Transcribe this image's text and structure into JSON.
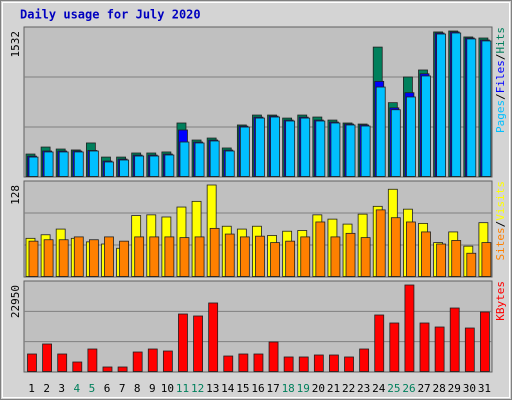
{
  "title": "Daily usage for July 2020",
  "legend_separator": "/",
  "categories": [
    "1",
    "2",
    "3",
    "4",
    "5",
    "6",
    "7",
    "8",
    "9",
    "10",
    "11",
    "12",
    "13",
    "14",
    "15",
    "16",
    "17",
    "18",
    "19",
    "20",
    "21",
    "22",
    "23",
    "24",
    "25",
    "26",
    "27",
    "28",
    "29",
    "30",
    "31"
  ],
  "highlight": [
    3,
    4,
    10,
    11,
    17,
    18,
    24,
    25
  ],
  "highlight_color": "#00805c",
  "chart_data": [
    {
      "type": "bar",
      "ylim": [
        0,
        1532
      ],
      "yticks": [
        1532
      ],
      "series": [
        {
          "name": "Hits",
          "color": "#00805c",
          "values": [
            232,
            306,
            285,
            275,
            349,
            200,
            200,
            243,
            243,
            254,
            560,
            380,
            401,
            296,
            539,
            644,
            644,
            612,
            644,
            623,
            591,
            560,
            549,
            1362,
            775,
            1046,
            1120,
            1522,
            1532,
            1469,
            1458
          ]
        },
        {
          "name": "Files",
          "color": "#0000ff",
          "values": [
            210,
            264,
            264,
            264,
            270,
            158,
            179,
            221,
            221,
            232,
            486,
            359,
            380,
            274,
            527,
            622,
            633,
            591,
            622,
            591,
            570,
            549,
            539,
            1000,
            720,
            880,
            1080,
            1511,
            1522,
            1458,
            1437
          ]
        },
        {
          "name": "Pages",
          "color": "#00c0ff",
          "values": [
            200,
            254,
            254,
            254,
            264,
            148,
            169,
            211,
            211,
            222,
            359,
            349,
            370,
            264,
            517,
            612,
            623,
            581,
            612,
            581,
            560,
            539,
            528,
            940,
            700,
            835,
            1057,
            1500,
            1511,
            1448,
            1427
          ]
        }
      ]
    },
    {
      "type": "bar",
      "ylim": [
        0,
        128
      ],
      "yticks": [
        128
      ],
      "series": [
        {
          "name": "Visits",
          "color": "#ffff00",
          "values": [
            53,
            58,
            66,
            53,
            48,
            45,
            39,
            85,
            86,
            83,
            97,
            105,
            128,
            70,
            66,
            70,
            57,
            63,
            64,
            86,
            80,
            73,
            87,
            98,
            122,
            94,
            74,
            47,
            62,
            42,
            75
          ]
        },
        {
          "name": "Sites",
          "color": "#ff8000",
          "values": [
            49,
            51,
            51,
            55,
            51,
            55,
            49,
            55,
            55,
            55,
            54,
            55,
            67,
            59,
            55,
            56,
            47,
            49,
            55,
            76,
            55,
            60,
            54,
            93,
            82,
            76,
            62,
            45,
            50,
            32,
            47
          ]
        }
      ]
    },
    {
      "type": "bar",
      "ylim": [
        0,
        22950
      ],
      "yticks": [
        22950
      ],
      "series": [
        {
          "name": "KBytes",
          "color": "#ff0000",
          "values": [
            4537,
            7205,
            4537,
            2400,
            5870,
            1070,
            1070,
            5070,
            5870,
            5337,
            15210,
            14680,
            18150,
            4000,
            4537,
            4537,
            7740,
            3740,
            3740,
            4270,
            4270,
            3740,
            5870,
            14945,
            12810,
            22950,
            12810,
            11740,
            16810,
            11470,
            15745
          ]
        }
      ]
    }
  ]
}
